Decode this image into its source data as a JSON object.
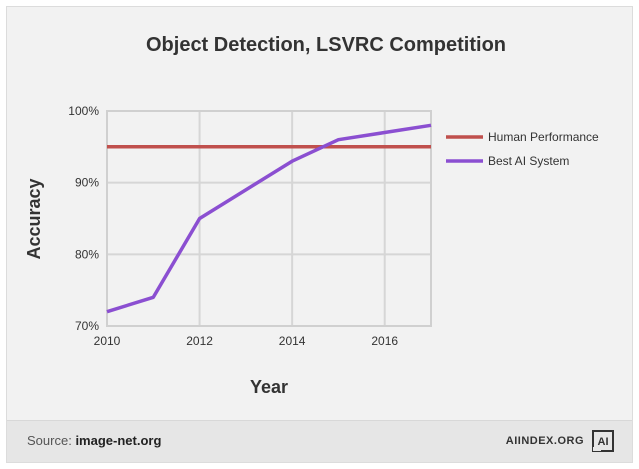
{
  "chart_data": {
    "type": "line",
    "title": "Object Detection, LSVRC Competition",
    "xlabel": "Year",
    "ylabel": "Accuracy",
    "xlim": [
      2010,
      2017
    ],
    "ylim": [
      70,
      100
    ],
    "x_ticks": [
      "2010",
      "2012",
      "2014",
      "2016"
    ],
    "y_ticks": [
      "70%",
      "80%",
      "90%",
      "100%"
    ],
    "grid": true,
    "legend_position": "right",
    "series": [
      {
        "name": "Human Performance",
        "color": "#c0504d",
        "x": [
          2010,
          2017
        ],
        "y": [
          95,
          95
        ]
      },
      {
        "name": "Best AI System",
        "color": "#8b4fd1",
        "x": [
          2010,
          2011,
          2012,
          2014,
          2015,
          2016,
          2017
        ],
        "y": [
          72,
          74,
          85,
          93,
          96,
          97,
          98
        ]
      }
    ]
  },
  "footer": {
    "source_label": "Source:",
    "source_value": "image-net.org",
    "brand": "AIINDEX.ORG",
    "logo_text": "AI"
  }
}
